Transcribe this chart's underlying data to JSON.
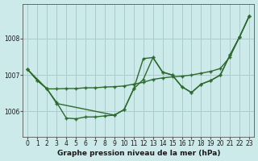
{
  "xlabel": "Graphe pression niveau de la mer (hPa)",
  "background_color": "#cceaea",
  "grid_color": "#aacccc",
  "line_color": "#2d6a2d",
  "ylim": [
    1005.3,
    1008.95
  ],
  "yticks": [
    1006,
    1007,
    1008
  ],
  "xlim": [
    -0.5,
    23.5
  ],
  "x_labels": [
    "0",
    "1",
    "2",
    "3",
    "4",
    "5",
    "6",
    "7",
    "8",
    "9",
    "10",
    "11",
    "12",
    "13",
    "14",
    "15",
    "16",
    "17",
    "18",
    "19",
    "20",
    "21",
    "22",
    "23"
  ],
  "line1_x": [
    0,
    1,
    2,
    3,
    4,
    5,
    6,
    7,
    8,
    9,
    10,
    11,
    12,
    13,
    14,
    15,
    16,
    17,
    18,
    19,
    20,
    21,
    22,
    23
  ],
  "line1_y": [
    1007.15,
    1006.85,
    1006.62,
    1006.62,
    1006.63,
    1006.63,
    1006.65,
    1006.65,
    1006.67,
    1006.68,
    1006.7,
    1006.75,
    1006.8,
    1006.88,
    1006.92,
    1006.95,
    1006.97,
    1007.0,
    1007.05,
    1007.1,
    1007.18,
    1007.5,
    1008.05,
    1008.62
  ],
  "line2_x": [
    0,
    1,
    2,
    3,
    4,
    5,
    6,
    7,
    8,
    9,
    10,
    11,
    12,
    13,
    14,
    15,
    16,
    17,
    18,
    19,
    20,
    21,
    22,
    23
  ],
  "line2_y": [
    1007.15,
    1006.85,
    1006.62,
    1006.25,
    1005.82,
    1005.8,
    1005.85,
    1005.85,
    1005.88,
    1005.9,
    1006.05,
    1006.62,
    1007.45,
    1007.48,
    1007.08,
    1007.0,
    1006.68,
    1006.52,
    1006.75,
    1006.85,
    1007.0,
    1007.55,
    1008.05,
    1008.62
  ],
  "line3_x": [
    0,
    2,
    3,
    9,
    10,
    11,
    12,
    13,
    14,
    15,
    16,
    17,
    18,
    19,
    20,
    21,
    22,
    23
  ],
  "line3_y": [
    1007.15,
    1006.62,
    1006.22,
    1005.9,
    1006.05,
    1006.62,
    1006.88,
    1007.48,
    1007.08,
    1007.0,
    1006.68,
    1006.52,
    1006.75,
    1006.85,
    1007.0,
    1007.55,
    1008.05,
    1008.62
  ]
}
